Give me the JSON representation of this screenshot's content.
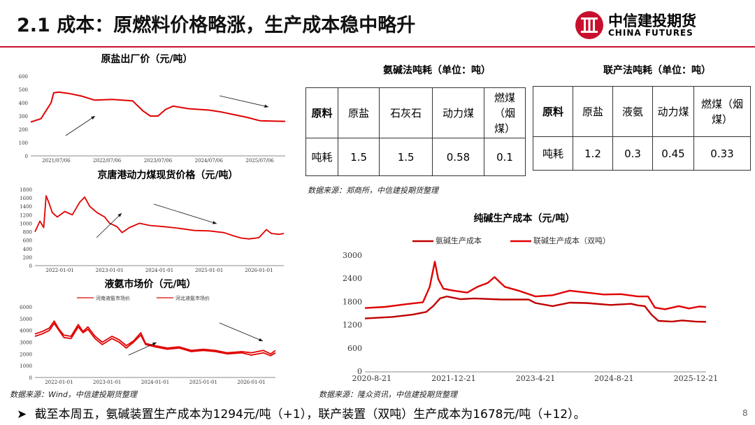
{
  "header": {
    "title": "2.1 成本：原燃料价格略涨，生产成本稳中略升",
    "logo_cn": "中信建投期货",
    "logo_en": "CHINA FUTURES"
  },
  "charts": {
    "salt": {
      "title": "原盐出厂价（元/吨）"
    },
    "coal": {
      "title": "京唐港动力煤现货价格（元/吨）"
    },
    "ammonia": {
      "title": "液氨市场价（元/吨）"
    },
    "soda": {
      "title": "纯碱生产成本（元/吨）"
    }
  },
  "chart_data": [
    {
      "type": "line",
      "title": "原盐出厂价（元/吨）",
      "xlabels": [
        "2021/07/06",
        "2022/07/06",
        "2023/07/06",
        "2024/07/06",
        "2025/07/06"
      ],
      "ylim": [
        0,
        600
      ],
      "yticks": [
        0,
        100,
        200,
        300,
        400,
        500,
        600
      ],
      "series": [
        {
          "values": [
            [
              0,
              255
            ],
            [
              0.04,
              280
            ],
            [
              0.08,
              400
            ],
            [
              0.09,
              475
            ],
            [
              0.11,
              480
            ],
            [
              0.15,
              470
            ],
            [
              0.2,
              450
            ],
            [
              0.25,
              420
            ],
            [
              0.32,
              425
            ],
            [
              0.4,
              415
            ],
            [
              0.44,
              340
            ],
            [
              0.47,
              300
            ],
            [
              0.5,
              300
            ],
            [
              0.53,
              350
            ],
            [
              0.56,
              375
            ],
            [
              0.62,
              355
            ],
            [
              0.7,
              345
            ],
            [
              0.75,
              330
            ],
            [
              0.8,
              310
            ],
            [
              0.85,
              290
            ],
            [
              0.9,
              265
            ],
            [
              0.95,
              262
            ],
            [
              1,
              260
            ]
          ]
        }
      ],
      "color": "#e00000"
    },
    {
      "type": "line",
      "title": "京唐港动力煤现货价格（元/吨）",
      "xlabels": [
        "2022-01-01",
        "2023-01-01",
        "2024-01-01",
        "2025-01-01",
        "2026-01-01"
      ],
      "ylim": [
        0,
        1800
      ],
      "yticks": [
        0,
        200,
        400,
        600,
        800,
        1000,
        1200,
        1400,
        1600,
        1800
      ],
      "series": [
        {
          "values": [
            [
              0,
              800
            ],
            [
              0.02,
              1050
            ],
            [
              0.035,
              900
            ],
            [
              0.045,
              1650
            ],
            [
              0.055,
              1500
            ],
            [
              0.07,
              1250
            ],
            [
              0.09,
              1150
            ],
            [
              0.12,
              1280
            ],
            [
              0.15,
              1200
            ],
            [
              0.18,
              1500
            ],
            [
              0.2,
              1620
            ],
            [
              0.22,
              1400
            ],
            [
              0.25,
              1250
            ],
            [
              0.28,
              1150
            ],
            [
              0.3,
              1000
            ],
            [
              0.33,
              920
            ],
            [
              0.35,
              780
            ],
            [
              0.38,
              900
            ],
            [
              0.42,
              1000
            ],
            [
              0.46,
              950
            ],
            [
              0.52,
              920
            ],
            [
              0.58,
              880
            ],
            [
              0.64,
              830
            ],
            [
              0.7,
              820
            ],
            [
              0.76,
              780
            ],
            [
              0.8,
              700
            ],
            [
              0.83,
              650
            ],
            [
              0.86,
              630
            ],
            [
              0.9,
              660
            ],
            [
              0.93,
              850
            ],
            [
              0.95,
              760
            ],
            [
              0.98,
              740
            ],
            [
              1,
              760
            ]
          ]
        }
      ],
      "color": "#e00000"
    },
    {
      "type": "line",
      "title": "液氨市场价（元/吨）",
      "xlabels": [
        "2022-01-01",
        "2023-01-01",
        "2024-01-01",
        "2025-01-01",
        "2026-01-01"
      ],
      "ylim": [
        0,
        6000
      ],
      "yticks": [
        0,
        1000,
        2000,
        3000,
        4000,
        5000,
        6000
      ],
      "legend": [
        "河南液氨市场价",
        "河北液氨市场价"
      ],
      "series": [
        {
          "name": "河南液氨市场价",
          "values": [
            [
              0,
              3700
            ],
            [
              0.03,
              3900
            ],
            [
              0.06,
              4200
            ],
            [
              0.08,
              4800
            ],
            [
              0.1,
              4100
            ],
            [
              0.12,
              3600
            ],
            [
              0.15,
              3500
            ],
            [
              0.18,
              4500
            ],
            [
              0.2,
              3900
            ],
            [
              0.22,
              4300
            ],
            [
              0.25,
              3500
            ],
            [
              0.28,
              3000
            ],
            [
              0.32,
              3500
            ],
            [
              0.35,
              3200
            ],
            [
              0.38,
              2700
            ],
            [
              0.41,
              3100
            ],
            [
              0.44,
              3800
            ],
            [
              0.46,
              2900
            ],
            [
              0.5,
              2700
            ],
            [
              0.55,
              2500
            ],
            [
              0.6,
              2600
            ],
            [
              0.65,
              2300
            ],
            [
              0.7,
              2400
            ],
            [
              0.75,
              2300
            ],
            [
              0.8,
              2100
            ],
            [
              0.86,
              2200
            ],
            [
              0.9,
              2100
            ],
            [
              0.95,
              2300
            ],
            [
              0.98,
              2000
            ],
            [
              1,
              2300
            ]
          ]
        },
        {
          "name": "河北液氨市场价",
          "values": [
            [
              0,
              3500
            ],
            [
              0.03,
              3700
            ],
            [
              0.06,
              4000
            ],
            [
              0.08,
              4600
            ],
            [
              0.1,
              4000
            ],
            [
              0.12,
              3400
            ],
            [
              0.15,
              3300
            ],
            [
              0.18,
              4300
            ],
            [
              0.2,
              3800
            ],
            [
              0.22,
              4100
            ],
            [
              0.25,
              3300
            ],
            [
              0.28,
              2800
            ],
            [
              0.32,
              3300
            ],
            [
              0.35,
              3000
            ],
            [
              0.38,
              2500
            ],
            [
              0.41,
              3000
            ],
            [
              0.44,
              3600
            ],
            [
              0.46,
              2800
            ],
            [
              0.5,
              2600
            ],
            [
              0.55,
              2400
            ],
            [
              0.6,
              2500
            ],
            [
              0.65,
              2200
            ],
            [
              0.7,
              2300
            ],
            [
              0.75,
              2200
            ],
            [
              0.8,
              2000
            ],
            [
              0.86,
              2100
            ],
            [
              0.9,
              1900
            ],
            [
              0.95,
              2100
            ],
            [
              0.98,
              1850
            ],
            [
              1,
              2100
            ]
          ]
        }
      ],
      "color": "#e00000"
    },
    {
      "type": "line",
      "title": "纯碱生产成本（元/吨）",
      "xlabels": [
        "2020-8-21",
        "2021-12-21",
        "2023-4-21",
        "2024-8-21",
        "2025-12-21"
      ],
      "ylim": [
        0,
        3000
      ],
      "yticks": [
        0,
        600,
        1200,
        1800,
        2400,
        3000
      ],
      "legend": [
        "氨碱生产成本",
        "联碱生产成本（双吨）"
      ],
      "series": [
        {
          "name": "氨碱生产成本",
          "values": [
            [
              0,
              1380
            ],
            [
              0.08,
              1420
            ],
            [
              0.14,
              1480
            ],
            [
              0.18,
              1550
            ],
            [
              0.2,
              1700
            ],
            [
              0.22,
              1900
            ],
            [
              0.24,
              1950
            ],
            [
              0.28,
              1880
            ],
            [
              0.32,
              1900
            ],
            [
              0.4,
              1870
            ],
            [
              0.48,
              1870
            ],
            [
              0.5,
              1780
            ],
            [
              0.55,
              1700
            ],
            [
              0.6,
              1790
            ],
            [
              0.65,
              1780
            ],
            [
              0.72,
              1730
            ],
            [
              0.78,
              1760
            ],
            [
              0.8,
              1720
            ],
            [
              0.82,
              1700
            ],
            [
              0.84,
              1480
            ],
            [
              0.86,
              1320
            ],
            [
              0.9,
              1300
            ],
            [
              0.93,
              1330
            ],
            [
              0.97,
              1300
            ],
            [
              1,
              1294
            ]
          ]
        },
        {
          "name": "联碱生产成本（双吨）",
          "values": [
            [
              0,
              1650
            ],
            [
              0.06,
              1680
            ],
            [
              0.12,
              1750
            ],
            [
              0.17,
              1800
            ],
            [
              0.19,
              2200
            ],
            [
              0.205,
              2850
            ],
            [
              0.215,
              2400
            ],
            [
              0.23,
              2150
            ],
            [
              0.26,
              2100
            ],
            [
              0.3,
              2050
            ],
            [
              0.33,
              2200
            ],
            [
              0.36,
              2300
            ],
            [
              0.38,
              2450
            ],
            [
              0.41,
              2200
            ],
            [
              0.45,
              2100
            ],
            [
              0.5,
              1950
            ],
            [
              0.55,
              1980
            ],
            [
              0.6,
              2100
            ],
            [
              0.65,
              2050
            ],
            [
              0.7,
              2000
            ],
            [
              0.75,
              2010
            ],
            [
              0.8,
              1950
            ],
            [
              0.83,
              1950
            ],
            [
              0.85,
              1660
            ],
            [
              0.88,
              1620
            ],
            [
              0.92,
              1700
            ],
            [
              0.95,
              1640
            ],
            [
              0.98,
              1690
            ],
            [
              1,
              1678
            ]
          ]
        }
      ],
      "colors": [
        "#c00000",
        "#e00000"
      ]
    }
  ],
  "tables": {
    "ammonia_soda": {
      "title": "氨碱法吨耗（单位：吨）",
      "header": [
        "原料",
        "原盐",
        "石灰石",
        "动力煤",
        "燃煤（烟煤）"
      ],
      "row_label": "吨耗",
      "values": [
        "1.5",
        "1.5",
        "0.58",
        "0.1"
      ]
    },
    "joint_soda": {
      "title": "联产法吨耗（单位：吨）",
      "header": [
        "原料",
        "原盐",
        "液氨",
        "动力煤",
        "燃煤（烟煤）"
      ],
      "row_label": "吨耗",
      "values": [
        "1.2",
        "0.3",
        "0.45",
        "0.33"
      ]
    }
  },
  "sources": {
    "left": "数据来源：Wind，中信建投期货整理",
    "table": "数据来源：郑商所，中信建投期货整理",
    "soda": "数据来源：隆众资讯，中信建投期货整理"
  },
  "footer": {
    "bullet": "➤",
    "text": "截至本周五，氨碱装置生产成本为1294元/吨（+1），联产装置（双吨）生产成本为1678元/吨（+12）。",
    "page": "8"
  }
}
